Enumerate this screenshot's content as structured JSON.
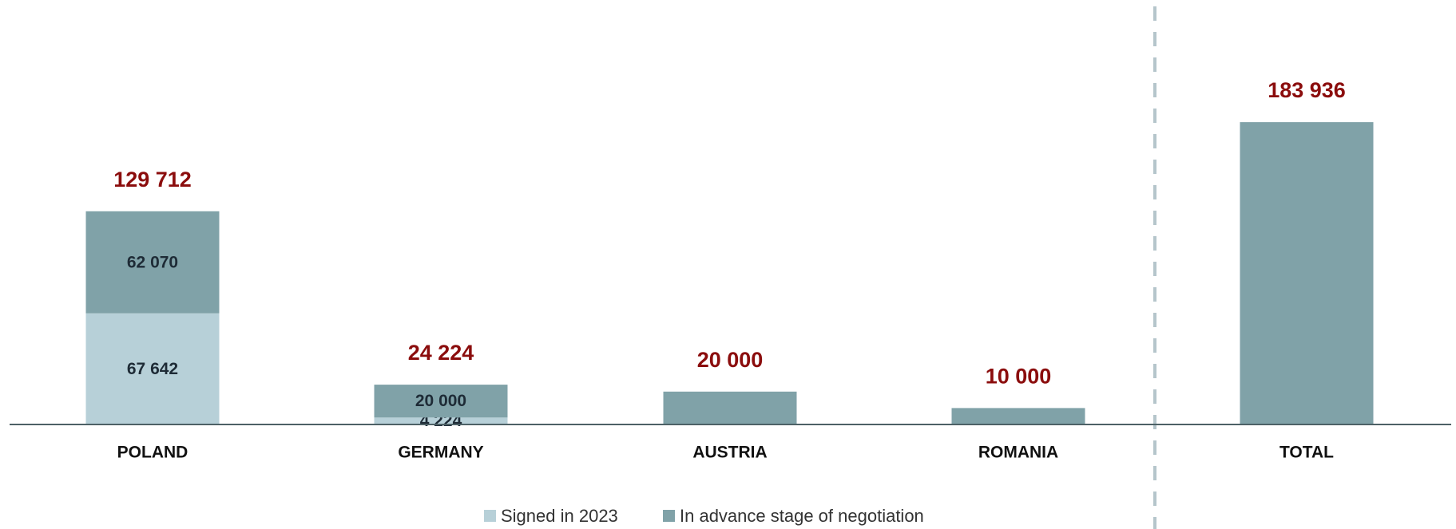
{
  "chart_data": {
    "type": "stacked_bar",
    "categories": [
      "POLAND",
      "GERMANY",
      "AUSTRIA",
      "ROMANIA",
      "TOTAL"
    ],
    "series": [
      {
        "name": "Signed in 2023",
        "color": "#b7d0d8",
        "values": [
          67642,
          4224,
          null,
          null,
          null
        ],
        "value_labels": [
          "67 642",
          "4 224",
          null,
          null,
          null
        ]
      },
      {
        "name": "In advance stage of negotiation",
        "color": "#80a2a8",
        "values": [
          62070,
          20000,
          20000,
          10000,
          183936
        ],
        "value_labels": [
          "62 070",
          "20 000",
          null,
          null,
          null
        ]
      }
    ],
    "totals": [
      129712,
      24224,
      20000,
      10000,
      183936
    ],
    "totals_labels": [
      "129 712",
      "24 224",
      "20 000",
      "10 000",
      "183 936"
    ],
    "ylim": [
      0,
      200000
    ],
    "total_color": "#8b0d0d"
  }
}
